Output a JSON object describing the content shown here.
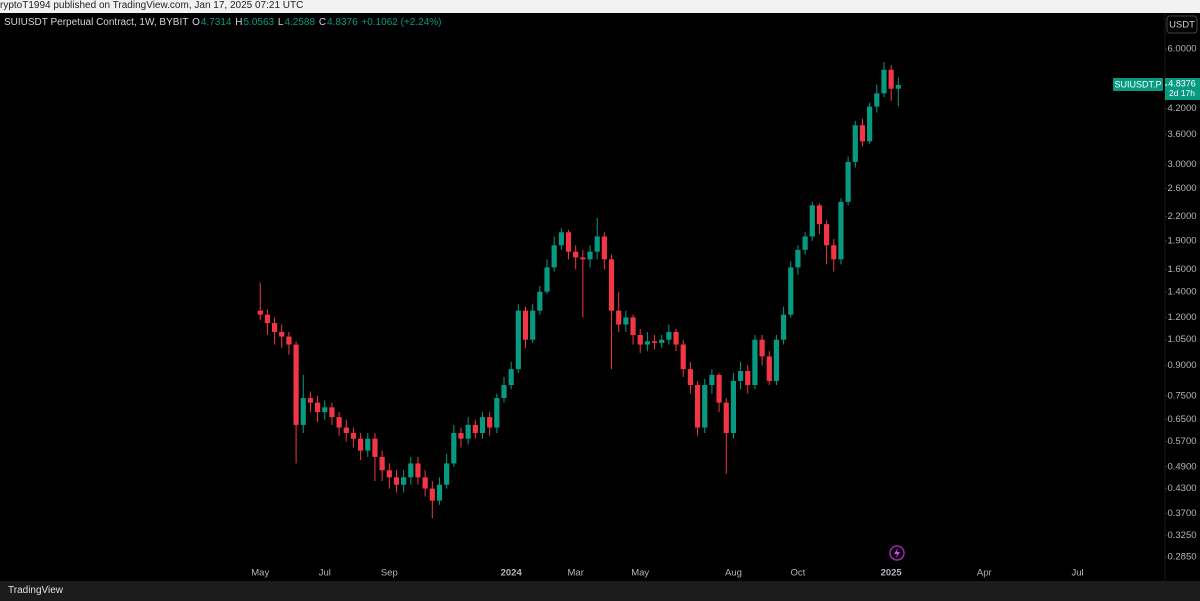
{
  "header": {
    "published": "ryptoT1994 published on TradingView.com, Jan 17, 2025 07:21 UTC"
  },
  "footer": {
    "brand": "TradingView"
  },
  "chart_data": {
    "type": "candlestick",
    "title": "SUIUSDT Perpetual Contract, 1W, BYBIT",
    "ohlc_labels": [
      "O",
      "H",
      "L",
      "C"
    ],
    "change": "+0.1062 (+2.24%)",
    "currency": "USDT",
    "symbol": "SUIUSDT.P",
    "countdown": "2d 17h",
    "up_color": "#089981",
    "down_color": "#f23645",
    "log_scale": true,
    "grid": false,
    "open": [
      1.25,
      1.22,
      1.16,
      1.1,
      1.07,
      1.02,
      0.63,
      0.74,
      0.72,
      0.68,
      0.7,
      0.66,
      0.62,
      0.6,
      0.58,
      0.54,
      0.58,
      0.52,
      0.48,
      0.46,
      0.44,
      0.46,
      0.5,
      0.46,
      0.43,
      0.4,
      0.44,
      0.5,
      0.6,
      0.58,
      0.63,
      0.6,
      0.66,
      0.62,
      0.74,
      0.8,
      0.88,
      1.25,
      1.05,
      1.25,
      1.4,
      1.62,
      1.85,
      2.0,
      1.78,
      1.72,
      1.7,
      1.78,
      1.95,
      1.7,
      1.25,
      1.15,
      1.2,
      1.08,
      1.02,
      1.04,
      1.03,
      1.05,
      1.1,
      1.02,
      0.88,
      0.8,
      0.62,
      0.8,
      0.85,
      0.72,
      0.6,
      0.82,
      0.87,
      0.8,
      1.05,
      0.95,
      0.82,
      1.05,
      1.22,
      1.62,
      1.8,
      1.95,
      2.35,
      2.1,
      1.85,
      1.7,
      2.4,
      3.05,
      3.8,
      3.45,
      4.25,
      4.6,
      5.3,
      4.7314
    ],
    "high": [
      1.48,
      1.26,
      1.2,
      1.15,
      1.1,
      1.04,
      0.85,
      0.77,
      0.75,
      0.73,
      0.72,
      0.68,
      0.65,
      0.62,
      0.6,
      0.6,
      0.6,
      0.54,
      0.5,
      0.48,
      0.48,
      0.52,
      0.52,
      0.48,
      0.45,
      0.46,
      0.53,
      0.63,
      0.62,
      0.66,
      0.65,
      0.68,
      0.68,
      0.76,
      0.84,
      0.92,
      1.3,
      1.28,
      1.3,
      1.45,
      1.7,
      1.95,
      2.05,
      2.03,
      1.85,
      1.8,
      1.85,
      2.18,
      2.0,
      1.75,
      1.4,
      1.25,
      1.22,
      1.12,
      1.1,
      1.08,
      1.08,
      1.15,
      1.12,
      1.05,
      0.92,
      0.82,
      0.83,
      0.88,
      0.86,
      0.74,
      0.86,
      0.92,
      0.9,
      1.08,
      1.08,
      0.98,
      1.08,
      1.28,
      1.68,
      1.85,
      2.0,
      2.4,
      2.38,
      2.15,
      1.92,
      2.45,
      3.15,
      3.9,
      3.95,
      4.35,
      4.85,
      5.55,
      5.45,
      5.0563
    ],
    "low": [
      1.18,
      1.08,
      1.02,
      1.0,
      0.96,
      0.5,
      0.6,
      0.68,
      0.64,
      0.65,
      0.63,
      0.59,
      0.57,
      0.55,
      0.51,
      0.52,
      0.45,
      0.45,
      0.43,
      0.42,
      0.42,
      0.44,
      0.44,
      0.41,
      0.36,
      0.39,
      0.43,
      0.49,
      0.55,
      0.56,
      0.58,
      0.58,
      0.59,
      0.6,
      0.72,
      0.78,
      0.86,
      1.0,
      1.03,
      1.22,
      1.38,
      1.58,
      1.8,
      1.7,
      1.6,
      1.2,
      1.62,
      1.7,
      1.6,
      0.88,
      1.1,
      1.1,
      1.02,
      0.97,
      0.98,
      0.99,
      1.0,
      1.02,
      0.98,
      0.84,
      0.76,
      0.59,
      0.6,
      0.76,
      0.68,
      0.47,
      0.58,
      0.78,
      0.76,
      0.78,
      0.9,
      0.8,
      0.8,
      1.02,
      1.2,
      1.55,
      1.75,
      1.9,
      1.98,
      1.65,
      1.58,
      1.65,
      2.35,
      2.95,
      3.35,
      3.4,
      4.1,
      4.5,
      4.4,
      4.2588
    ],
    "close": [
      1.22,
      1.16,
      1.1,
      1.07,
      1.02,
      0.63,
      0.74,
      0.72,
      0.68,
      0.7,
      0.66,
      0.62,
      0.6,
      0.58,
      0.54,
      0.58,
      0.52,
      0.48,
      0.46,
      0.44,
      0.46,
      0.5,
      0.46,
      0.43,
      0.4,
      0.44,
      0.5,
      0.6,
      0.58,
      0.63,
      0.6,
      0.66,
      0.62,
      0.74,
      0.8,
      0.88,
      1.25,
      1.05,
      1.25,
      1.4,
      1.62,
      1.85,
      2.0,
      1.78,
      1.72,
      1.7,
      1.78,
      1.95,
      1.7,
      1.25,
      1.15,
      1.2,
      1.08,
      1.02,
      1.04,
      1.03,
      1.05,
      1.1,
      1.02,
      0.88,
      0.8,
      0.62,
      0.8,
      0.85,
      0.72,
      0.6,
      0.82,
      0.87,
      0.8,
      1.05,
      0.95,
      0.82,
      1.05,
      1.22,
      1.62,
      1.8,
      1.95,
      2.35,
      2.1,
      1.85,
      1.7,
      2.4,
      3.05,
      3.8,
      3.45,
      4.25,
      4.6,
      5.3,
      4.7314,
      4.8376
    ],
    "xlim": [
      -36.3,
      126.2
    ],
    "xticks": [
      {
        "value": 0,
        "label": "May"
      },
      {
        "value": 9,
        "label": "Jul"
      },
      {
        "value": 18,
        "label": "Sep"
      },
      {
        "value": 35,
        "label": "2024"
      },
      {
        "value": 44,
        "label": "Mar"
      },
      {
        "value": 53,
        "label": "May"
      },
      {
        "value": 66,
        "label": "Aug"
      },
      {
        "value": 75,
        "label": "Oct"
      },
      {
        "value": 88,
        "label": "2025"
      },
      {
        "value": 101,
        "label": "Apr"
      },
      {
        "value": 114,
        "label": "Jul"
      }
    ],
    "ylim": [
      0.247,
      7.45
    ],
    "yticks": [
      {
        "value": 6,
        "label": "6.0000"
      },
      {
        "value": 4.2,
        "label": "4.2000"
      },
      {
        "value": 3.6,
        "label": "3.6000"
      },
      {
        "value": 3,
        "label": "3.0000"
      },
      {
        "value": 2.6,
        "label": "2.6000"
      },
      {
        "value": 2.2,
        "label": "2.2000"
      },
      {
        "value": 1.9,
        "label": "1.9000"
      },
      {
        "value": 1.6,
        "label": "1.6000"
      },
      {
        "value": 1.4,
        "label": "1.4000"
      },
      {
        "value": 1.2,
        "label": "1.2000"
      },
      {
        "value": 1.05,
        "label": "1.0500"
      },
      {
        "value": 0.9,
        "label": "0.9000"
      },
      {
        "value": 0.75,
        "label": "0.7500"
      },
      {
        "value": 0.65,
        "label": "0.6500"
      },
      {
        "value": 0.57,
        "label": "0.5700"
      },
      {
        "value": 0.49,
        "label": "0.4900"
      },
      {
        "value": 0.43,
        "label": "0.4300"
      },
      {
        "value": 0.37,
        "label": "0.3700"
      },
      {
        "value": 0.325,
        "label": "0.3250"
      },
      {
        "value": 0.285,
        "label": "0.2850"
      }
    ]
  }
}
